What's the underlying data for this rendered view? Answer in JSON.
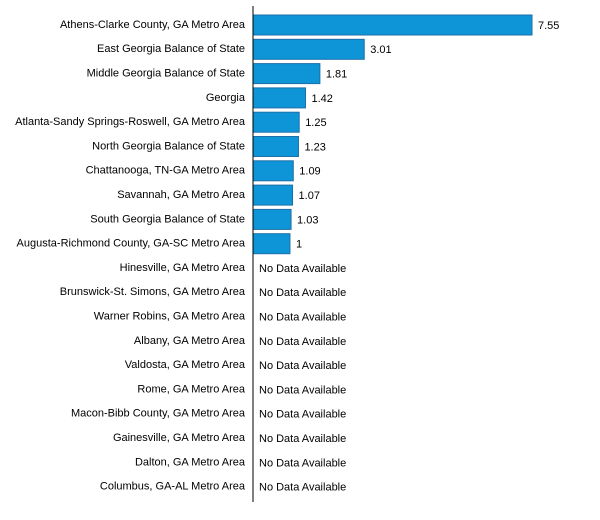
{
  "chart_data": {
    "type": "bar",
    "orientation": "horizontal",
    "title": "",
    "xlabel": "",
    "ylabel": "",
    "xlim": [
      0,
      7.55
    ],
    "grid": false,
    "legend": "none",
    "bar_color": "#0d95d8",
    "no_data_text": "No Data Available",
    "categories": [
      "Athens-Clarke County, GA Metro Area",
      "East Georgia Balance of State",
      "Middle Georgia Balance of State",
      "Georgia",
      "Atlanta-Sandy Springs-Roswell, GA Metro Area",
      "North Georgia Balance of State",
      "Chattanooga, TN-GA Metro Area",
      "Savannah, GA Metro Area",
      "South Georgia Balance of State",
      "Augusta-Richmond County, GA-SC Metro Area",
      "Hinesville, GA Metro Area",
      "Brunswick-St. Simons, GA Metro Area",
      "Warner Robins, GA Metro Area",
      "Albany, GA Metro Area",
      "Valdosta, GA Metro Area",
      "Rome, GA Metro Area",
      "Macon-Bibb County, GA Metro Area",
      "Gainesville, GA Metro Area",
      "Dalton, GA Metro Area",
      "Columbus, GA-AL Metro Area"
    ],
    "values": [
      7.55,
      3.01,
      1.81,
      1.42,
      1.25,
      1.23,
      1.09,
      1.07,
      1.03,
      1,
      null,
      null,
      null,
      null,
      null,
      null,
      null,
      null,
      null,
      null
    ],
    "value_labels": [
      "7.55",
      "3.01",
      "1.81",
      "1.42",
      "1.25",
      "1.23",
      "1.09",
      "1.07",
      "1.03",
      "1",
      null,
      null,
      null,
      null,
      null,
      null,
      null,
      null,
      null,
      null
    ]
  }
}
